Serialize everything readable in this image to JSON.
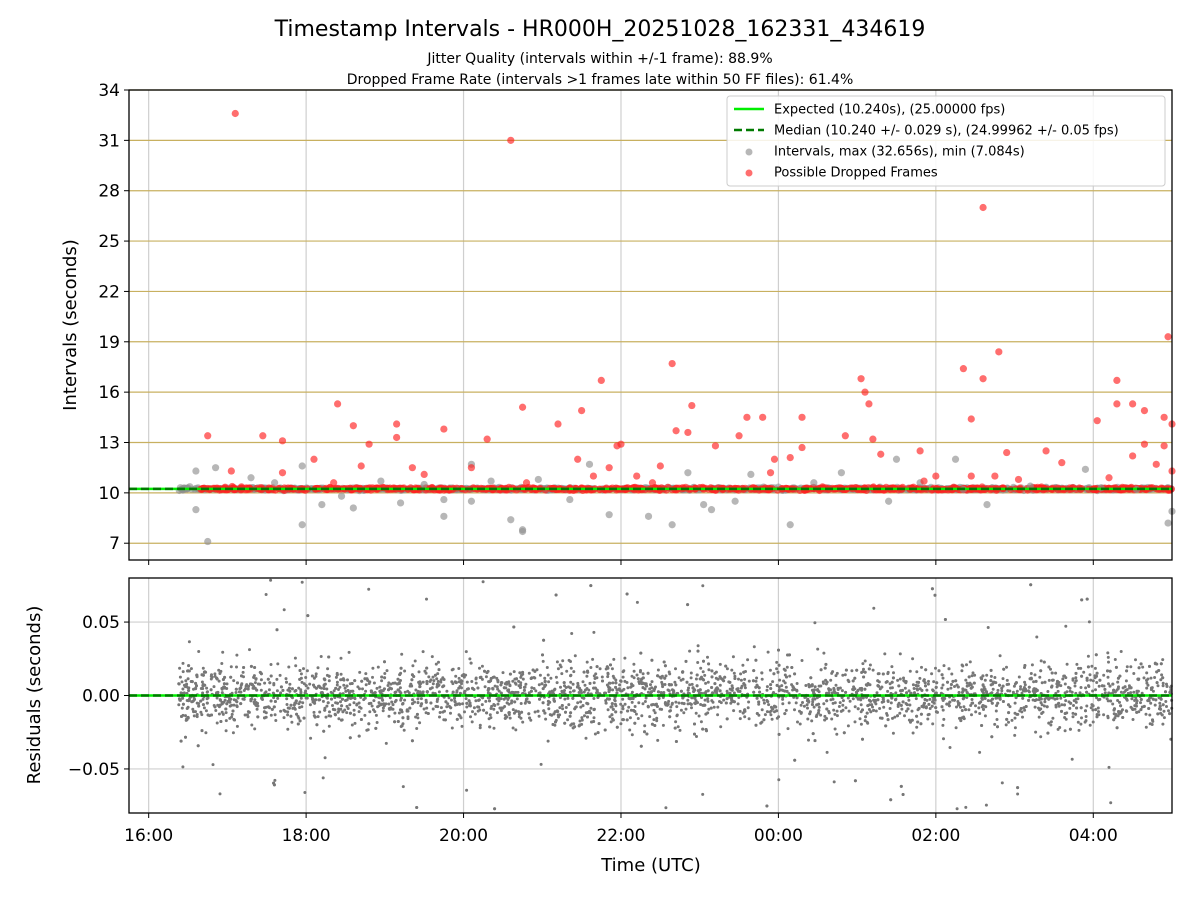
{
  "chart_data": [
    {
      "type": "scatter",
      "title": "Timestamp Intervals - HR000H_20251028_162331_434619",
      "subtitle_lines": [
        "Jitter Quality (intervals within +/-1 frame): 88.9%",
        "Dropped Frame Rate (intervals >1 frames late within 50 FF files): 61.4%"
      ],
      "xlabel": "",
      "ylabel": "Intervals (seconds)",
      "ylim": [
        6,
        34
      ],
      "yticks": [
        7,
        10,
        13,
        16,
        19,
        22,
        25,
        28,
        31,
        34
      ],
      "xlim_hours": [
        15.75,
        29.0
      ],
      "xticks_hours": [
        16,
        18,
        20,
        22,
        24,
        26,
        28
      ],
      "grid": true,
      "legend_position": "top-right",
      "legend": [
        "Expected (10.240s), (25.00000 fps)",
        "Median (10.240 +/- 0.029 s), (24.99962 +/- 0.05 fps)",
        "Intervals, max (32.656s), min (7.084s)",
        "Possible Dropped Frames"
      ],
      "colors": {
        "expected": "#00ee00",
        "median": "#007a00",
        "intervals": "#909090",
        "dropped": "#ff2020",
        "hgrid": "#c8b060",
        "vgrid": "#cfcfcf"
      },
      "expected": 10.24,
      "median": 10.24,
      "baseline_span_hours": [
        16.38,
        29.0
      ],
      "series": [
        {
          "name": "Intervals, max (32.656s), min (7.084s)",
          "points": [
            [
              16.6,
              11.3
            ],
            [
              16.6,
              9.0
            ],
            [
              16.75,
              7.1
            ],
            [
              16.85,
              11.5
            ],
            [
              17.3,
              10.9
            ],
            [
              17.6,
              10.6
            ],
            [
              17.95,
              11.6
            ],
            [
              17.95,
              8.1
            ],
            [
              18.2,
              9.3
            ],
            [
              18.45,
              9.8
            ],
            [
              18.6,
              9.1
            ],
            [
              18.95,
              10.7
            ],
            [
              19.2,
              9.4
            ],
            [
              19.5,
              10.5
            ],
            [
              19.75,
              9.6
            ],
            [
              19.75,
              8.6
            ],
            [
              20.1,
              11.7
            ],
            [
              20.1,
              9.5
            ],
            [
              20.35,
              10.7
            ],
            [
              20.6,
              8.4
            ],
            [
              20.75,
              7.8
            ],
            [
              20.75,
              7.7
            ],
            [
              20.95,
              10.8
            ],
            [
              21.35,
              9.6
            ],
            [
              21.6,
              11.7
            ],
            [
              21.85,
              8.7
            ],
            [
              22.35,
              8.6
            ],
            [
              22.65,
              8.1
            ],
            [
              22.85,
              11.2
            ],
            [
              23.05,
              9.3
            ],
            [
              23.15,
              9.0
            ],
            [
              23.45,
              9.5
            ],
            [
              23.65,
              11.1
            ],
            [
              24.15,
              8.1
            ],
            [
              24.45,
              10.6
            ],
            [
              24.8,
              11.2
            ],
            [
              25.4,
              9.5
            ],
            [
              25.5,
              12.0
            ],
            [
              25.8,
              10.6
            ],
            [
              26.25,
              12.0
            ],
            [
              26.35,
              10.2
            ],
            [
              26.65,
              9.3
            ],
            [
              27.2,
              10.4
            ],
            [
              27.9,
              11.4
            ],
            [
              28.1,
              10.3
            ],
            [
              28.55,
              10.2
            ],
            [
              28.95,
              8.2
            ],
            [
              29.0,
              8.9
            ]
          ]
        },
        {
          "name": "Possible Dropped Frames",
          "points": [
            [
              17.1,
              32.6
            ],
            [
              20.6,
              31.0
            ],
            [
              26.6,
              27.0
            ],
            [
              28.95,
              19.3
            ],
            [
              26.8,
              18.4
            ],
            [
              22.65,
              17.7
            ],
            [
              26.35,
              17.4
            ],
            [
              25.05,
              16.8
            ],
            [
              26.6,
              16.8
            ],
            [
              21.75,
              16.7
            ],
            [
              28.3,
              16.7
            ],
            [
              25.1,
              16.0
            ],
            [
              18.4,
              15.3
            ],
            [
              25.15,
              15.3
            ],
            [
              28.3,
              15.3
            ],
            [
              28.5,
              15.3
            ],
            [
              22.9,
              15.2
            ],
            [
              20.75,
              15.1
            ],
            [
              21.5,
              14.9
            ],
            [
              28.65,
              14.9
            ],
            [
              28.9,
              14.5
            ],
            [
              23.6,
              14.5
            ],
            [
              23.8,
              14.5
            ],
            [
              24.3,
              14.5
            ],
            [
              26.45,
              14.4
            ],
            [
              28.05,
              14.3
            ],
            [
              19.15,
              14.1
            ],
            [
              21.2,
              14.1
            ],
            [
              18.6,
              14.0
            ],
            [
              29.0,
              14.1
            ],
            [
              19.75,
              13.8
            ],
            [
              22.7,
              13.7
            ],
            [
              22.85,
              13.6
            ],
            [
              16.75,
              13.4
            ],
            [
              17.45,
              13.4
            ],
            [
              24.85,
              13.4
            ],
            [
              19.15,
              13.3
            ],
            [
              20.3,
              13.2
            ],
            [
              25.2,
              13.2
            ],
            [
              23.5,
              13.4
            ],
            [
              17.7,
              13.1
            ],
            [
              18.8,
              12.9
            ],
            [
              22.0,
              12.9
            ],
            [
              28.65,
              12.9
            ],
            [
              21.95,
              12.8
            ],
            [
              28.9,
              12.8
            ],
            [
              23.2,
              12.8
            ],
            [
              24.3,
              12.7
            ],
            [
              26.9,
              12.4
            ],
            [
              27.4,
              12.5
            ],
            [
              25.3,
              12.3
            ],
            [
              25.8,
              12.5
            ],
            [
              28.5,
              12.2
            ],
            [
              18.1,
              12.0
            ],
            [
              23.95,
              12.0
            ],
            [
              24.15,
              12.1
            ],
            [
              21.45,
              12.0
            ],
            [
              18.7,
              11.6
            ],
            [
              19.35,
              11.5
            ],
            [
              20.1,
              11.5
            ],
            [
              21.85,
              11.5
            ],
            [
              22.5,
              11.6
            ],
            [
              27.6,
              11.8
            ],
            [
              28.8,
              11.7
            ],
            [
              29.0,
              11.3
            ],
            [
              17.05,
              11.3
            ],
            [
              17.7,
              11.2
            ],
            [
              19.5,
              11.1
            ],
            [
              21.65,
              11.0
            ],
            [
              22.2,
              11.0
            ],
            [
              23.9,
              11.2
            ],
            [
              26.0,
              11.0
            ],
            [
              26.45,
              11.0
            ],
            [
              26.75,
              11.0
            ],
            [
              27.05,
              10.8
            ],
            [
              28.2,
              10.9
            ],
            [
              18.35,
              10.6
            ],
            [
              20.8,
              10.6
            ],
            [
              22.4,
              10.6
            ],
            [
              25.85,
              10.7
            ]
          ]
        }
      ]
    },
    {
      "type": "scatter",
      "title": "",
      "xlabel": "Time (UTC)",
      "ylabel": "Residuals (seconds)",
      "ylim": [
        -0.08,
        0.08
      ],
      "yticks": [
        -0.05,
        0.0,
        0.05
      ],
      "yticklabels": [
        "−0.05",
        "0.00",
        "0.05"
      ],
      "xlim_hours": [
        15.75,
        29.0
      ],
      "xticks_hours": [
        16,
        18,
        20,
        22,
        24,
        26,
        28
      ],
      "xticklabels": [
        "16:00",
        "18:00",
        "20:00",
        "22:00",
        "00:00",
        "02:00",
        "04:00"
      ],
      "grid": true,
      "zero_line": 0.0,
      "x_range_hours": [
        16.38,
        29.0
      ],
      "point_count": 3800,
      "residual_std": 0.02,
      "colors": {
        "points": "#777777",
        "zero_line": "#00ee00",
        "zero_dash": "#007a00"
      }
    }
  ]
}
